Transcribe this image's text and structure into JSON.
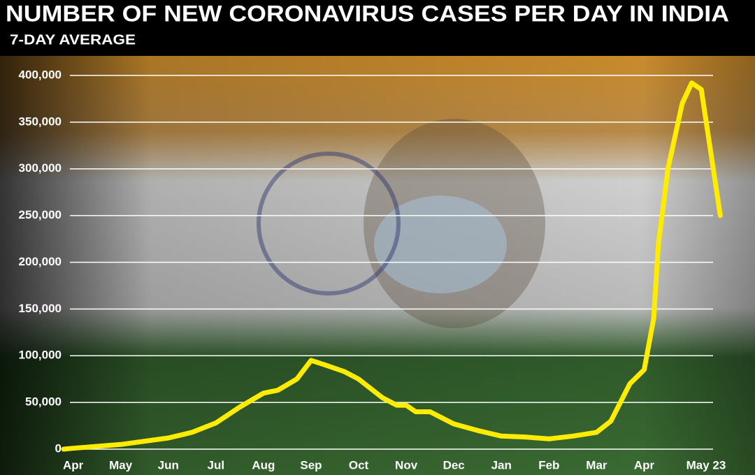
{
  "chart_data": {
    "type": "line",
    "title": "NUMBER OF NEW CORONAVIRUS CASES PER DAY IN INDIA",
    "subtitle": "7-DAY AVERAGE",
    "x": [
      -0.2,
      0,
      1,
      2,
      2.5,
      3,
      3.5,
      4,
      4.3,
      4.7,
      5,
      5.3,
      5.7,
      6,
      6.5,
      6.8,
      7,
      7.2,
      7.5,
      8,
      8.5,
      9,
      9.5,
      10,
      10.5,
      11,
      11.3,
      11.7,
      12,
      12.2,
      12.3,
      12.5,
      12.8,
      13,
      13.2,
      13.6
    ],
    "series": [
      {
        "name": "New cases (7-day average)",
        "color": "#ffec00",
        "values": [
          0,
          1000,
          5000,
          12000,
          18000,
          28000,
          45000,
          60000,
          63000,
          75000,
          95000,
          90000,
          83000,
          75000,
          55000,
          47000,
          47000,
          40000,
          40000,
          27000,
          20000,
          14000,
          13000,
          11000,
          14000,
          18000,
          30000,
          70000,
          85000,
          140000,
          220000,
          300000,
          370000,
          392000,
          385000,
          250000
        ]
      }
    ],
    "xlim": [
      -0.2,
      13.8
    ],
    "xticks": [
      {
        "value": 0,
        "label": "Apr"
      },
      {
        "value": 1,
        "label": "May"
      },
      {
        "value": 2,
        "label": "Jun"
      },
      {
        "value": 3,
        "label": "Jul"
      },
      {
        "value": 4,
        "label": "Aug"
      },
      {
        "value": 5,
        "label": "Sep"
      },
      {
        "value": 6,
        "label": "Oct"
      },
      {
        "value": 7,
        "label": "Nov"
      },
      {
        "value": 8,
        "label": "Dec"
      },
      {
        "value": 9,
        "label": "Jan"
      },
      {
        "value": 10,
        "label": "Feb"
      },
      {
        "value": 11,
        "label": "Mar"
      },
      {
        "value": 12,
        "label": "Apr"
      },
      {
        "value": 13.3,
        "label": "May 23"
      }
    ],
    "ylim": [
      0,
      400000
    ],
    "yticks": [
      0,
      {
        "value": 50000,
        "label": "50,000"
      },
      {
        "value": 100000,
        "label": "100,000"
      },
      {
        "value": 150000,
        "label": "150,000"
      },
      {
        "value": 200000,
        "label": "200,000"
      },
      {
        "value": 250000,
        "label": "250,000"
      },
      {
        "value": 300000,
        "label": "300,000"
      },
      {
        "value": 350000,
        "label": "350,000"
      },
      {
        "value": 400000,
        "label": "400,000"
      }
    ],
    "grid": true
  }
}
